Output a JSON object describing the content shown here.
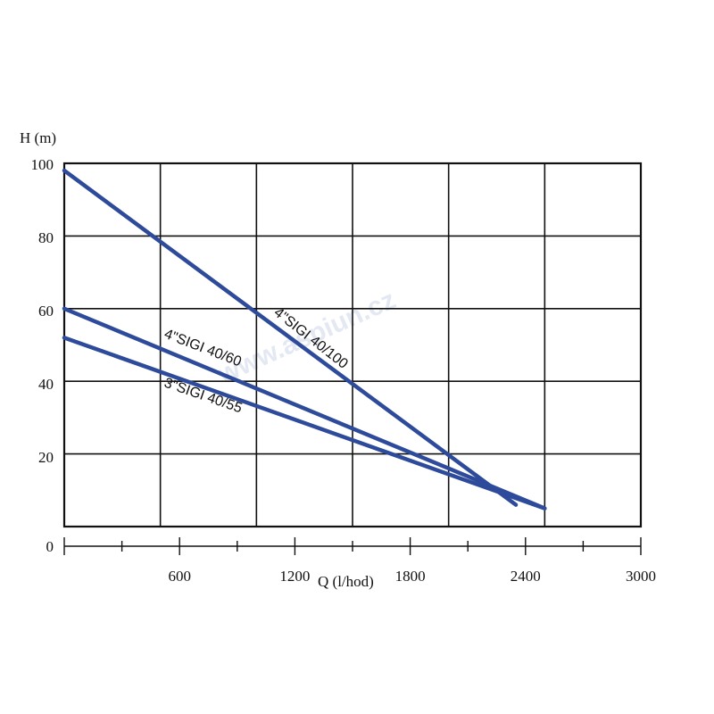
{
  "chart_data": {
    "type": "line",
    "ylabel": "H (m)",
    "xlabel": "Q  (l/hod)",
    "ylim": [
      0,
      100
    ],
    "xlim": [
      0,
      3000
    ],
    "y_ticks": [
      "0",
      "20",
      "40",
      "60",
      "80",
      "100"
    ],
    "x_ticks": [
      "600",
      "1200",
      "1800",
      "2400",
      "3000"
    ],
    "grid": true,
    "series": [
      {
        "name": "4\"SIGI 40/100",
        "color": "#2e4b9b",
        "x": [
          0,
          2350
        ],
        "y": [
          98,
          6
        ]
      },
      {
        "name": "4\"SIGI 40/60",
        "color": "#2e4b9b",
        "x": [
          0,
          2500
        ],
        "y": [
          60,
          5
        ]
      },
      {
        "name": "3\"SIGI 40/55",
        "color": "#2e4b9b",
        "x": [
          0,
          2500
        ],
        "y": [
          52,
          5
        ]
      }
    ],
    "watermark": "www.aspiun.cz"
  }
}
